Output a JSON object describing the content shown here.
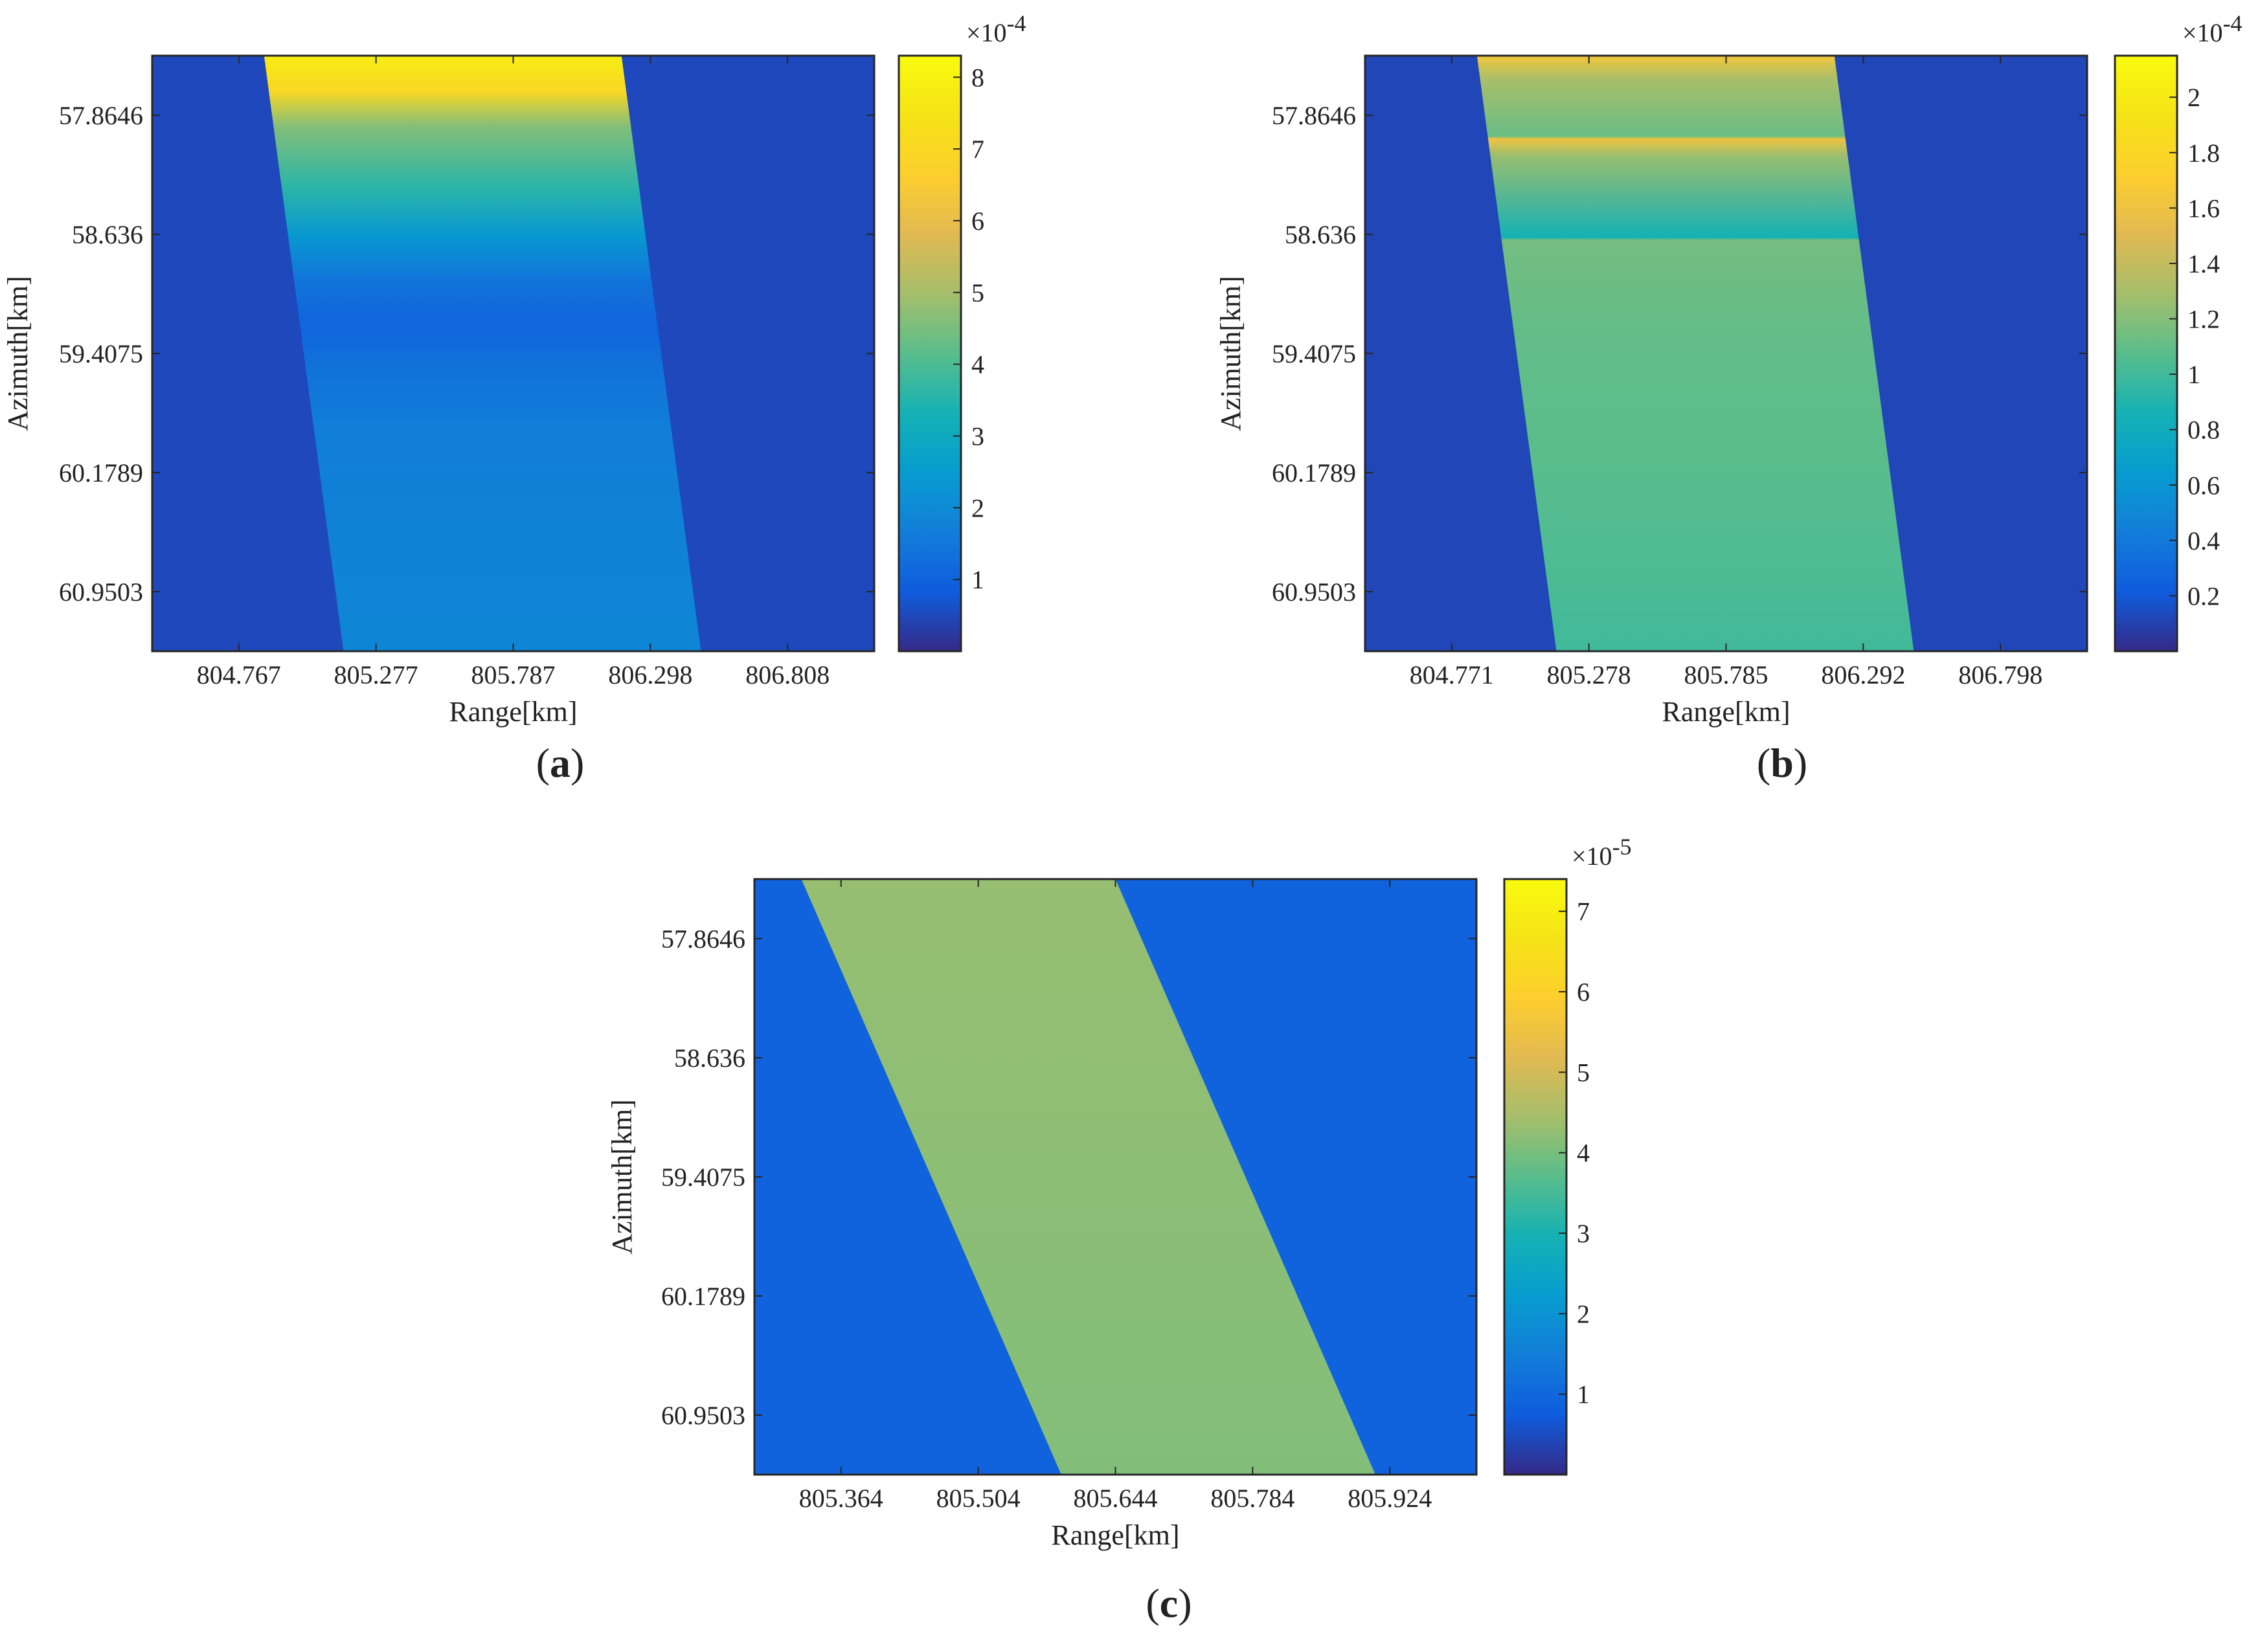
{
  "chart_data": [
    {
      "type": "heatmap",
      "panel_label": {
        "open": "(",
        "letter": "a",
        "close": ")"
      },
      "xlabel": "Range[km]",
      "ylabel": "Azimuth[km]",
      "xticks": [
        "804.767",
        "805.277",
        "805.787",
        "806.298",
        "806.808"
      ],
      "yticks": [
        "57.8646",
        "58.636",
        "59.4075",
        "60.1789",
        "60.9503"
      ],
      "colorbar": {
        "ticks": [
          "1",
          "2",
          "3",
          "4",
          "5",
          "6",
          "7",
          "8"
        ],
        "tick_values": [
          1,
          2,
          3,
          4,
          5,
          6,
          7,
          8
        ],
        "min": 0,
        "max": 8.3,
        "multiplier_base": "×10",
        "multiplier_exp": "-4",
        "colormap": "parula"
      },
      "strip": {
        "top_left": 0.155,
        "top_right": 0.65,
        "bottom_left": 0.265,
        "bottom_right": 0.76
      },
      "background_value": 0.5,
      "strip_profile": [
        {
          "y": 0.0,
          "v": 7.8
        },
        {
          "y": 0.06,
          "v": 7.0
        },
        {
          "y": 0.12,
          "v": 4.6
        },
        {
          "y": 0.22,
          "v": 3.6
        },
        {
          "y": 0.3,
          "v": 2.4
        },
        {
          "y": 0.38,
          "v": 1.4
        },
        {
          "y": 0.45,
          "v": 1.05
        },
        {
          "y": 0.52,
          "v": 1.35
        },
        {
          "y": 0.62,
          "v": 1.7
        },
        {
          "y": 1.0,
          "v": 1.9
        }
      ]
    },
    {
      "type": "heatmap",
      "panel_label": {
        "open": "(",
        "letter": "b",
        "close": ")"
      },
      "xlabel": "Range[km]",
      "ylabel": "Azimuth[km]",
      "xticks": [
        "804.771",
        "805.278",
        "805.785",
        "806.292",
        "806.798"
      ],
      "yticks": [
        "57.8646",
        "58.636",
        "59.4075",
        "60.1789",
        "60.9503"
      ],
      "colorbar": {
        "ticks": [
          "0.2",
          "0.4",
          "0.6",
          "0.8",
          "1",
          "1.2",
          "1.4",
          "1.6",
          "1.8",
          "2"
        ],
        "tick_values": [
          0.2,
          0.4,
          0.6,
          0.8,
          1,
          1.2,
          1.4,
          1.6,
          1.8,
          2
        ],
        "min": 0,
        "max": 2.15,
        "multiplier_base": "×10",
        "multiplier_exp": "-4",
        "colormap": "parula"
      },
      "strip": {
        "top_left": 0.155,
        "top_right": 0.65,
        "bottom_left": 0.265,
        "bottom_right": 0.76
      },
      "background_value": 0.12,
      "strip_profile": [
        {
          "y": 0.0,
          "v": 1.65
        },
        {
          "y": 0.04,
          "v": 1.3
        },
        {
          "y": 0.135,
          "v": 1.12
        },
        {
          "y": 0.14,
          "v": 1.6
        },
        {
          "y": 0.17,
          "v": 1.25
        },
        {
          "y": 0.305,
          "v": 0.85
        },
        {
          "y": 0.31,
          "v": 1.15
        },
        {
          "y": 0.48,
          "v": 1.1
        },
        {
          "y": 0.65,
          "v": 1.08
        },
        {
          "y": 0.82,
          "v": 1.05
        },
        {
          "y": 1.0,
          "v": 1.0
        }
      ]
    },
    {
      "type": "heatmap",
      "panel_label": {
        "open": "(",
        "letter": "c",
        "close": ")"
      },
      "xlabel": "Range[km]",
      "ylabel": "Azimuth[km]",
      "xticks": [
        "805.364",
        "805.504",
        "805.644",
        "805.784",
        "805.924"
      ],
      "yticks": [
        "57.8646",
        "58.636",
        "59.4075",
        "60.1789",
        "60.9503"
      ],
      "colorbar": {
        "ticks": [
          "1",
          "2",
          "3",
          "4",
          "5",
          "6",
          "7"
        ],
        "tick_values": [
          1,
          2,
          3,
          4,
          5,
          6,
          7
        ],
        "min": 0,
        "max": 7.4,
        "multiplier_base": "×10",
        "multiplier_exp": "-5",
        "colormap": "parula"
      },
      "strip": {
        "top_left": 0.065,
        "top_right": 0.5,
        "bottom_left": 0.425,
        "bottom_right": 0.86
      },
      "background_value": 0.9,
      "strip_profile": [
        {
          "y": 0.0,
          "v": 4.3
        },
        {
          "y": 1.0,
          "v": 4.1
        }
      ]
    }
  ]
}
